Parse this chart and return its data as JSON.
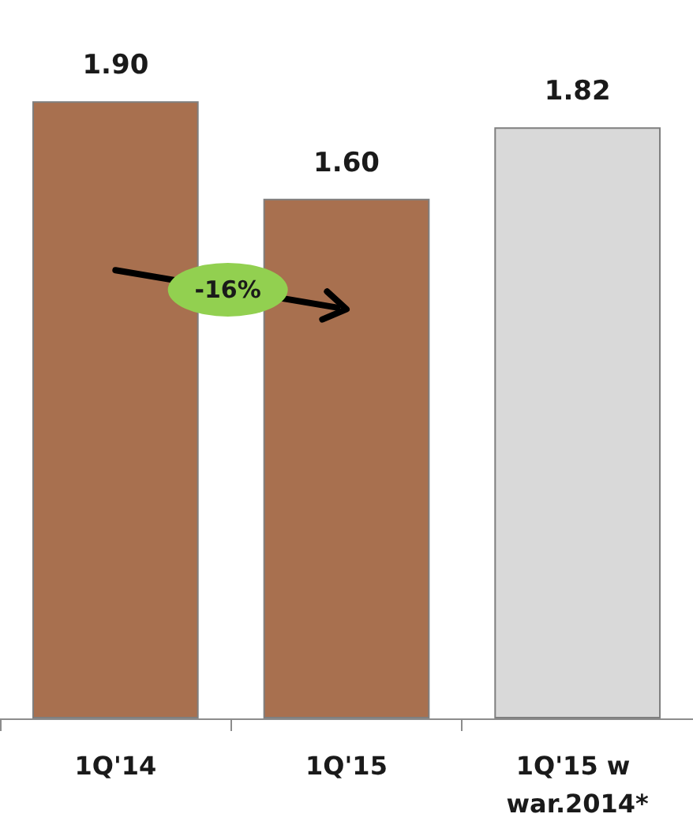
{
  "chart_data": {
    "type": "bar",
    "categories": [
      "1Q'14",
      "1Q'15",
      "1Q'15 w war.2014*"
    ],
    "values": [
      1.9,
      1.6,
      1.82
    ],
    "colors": [
      "#a8704f",
      "#a8704f",
      "#d9d9d9"
    ],
    "data_labels": true,
    "value_labels": [
      "1.90",
      "1.60",
      "1.82"
    ],
    "annotations": [
      "-16%"
    ]
  }
}
